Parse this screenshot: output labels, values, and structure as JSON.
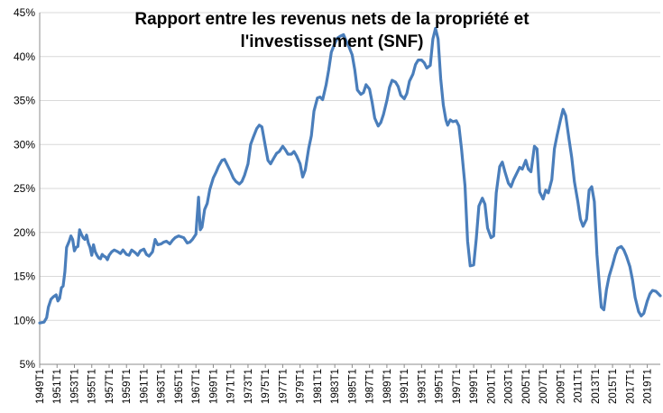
{
  "chart_data": {
    "type": "line",
    "title_lines": [
      "Rapport entre les revenus nets de la propriété et",
      "l'investissement (SNF)"
    ],
    "xlabel": "",
    "ylabel": "",
    "y_tick_labels": [
      "5%",
      "10%",
      "15%",
      "20%",
      "25%",
      "30%",
      "35%",
      "40%",
      "45%"
    ],
    "y_ticks": [
      5,
      10,
      15,
      20,
      25,
      30,
      35,
      40,
      45
    ],
    "ylim": [
      5,
      45
    ],
    "x_range": [
      1949,
      2020.5
    ],
    "x_tick_labels": [
      "1949T1",
      "1951T1",
      "1953T1",
      "1955T1",
      "1957T1",
      "1959T1",
      "1961T1",
      "1963T1",
      "1965T1",
      "1967T1",
      "1969T1",
      "1971T1",
      "1973T1",
      "1975T1",
      "1977T1",
      "1979T1",
      "1981T1",
      "1983T1",
      "1985T1",
      "1987T1",
      "1989T1",
      "1991T1",
      "1993T1",
      "1995T1",
      "1997T1",
      "1999T1",
      "2001T1",
      "2003T1",
      "2005T1",
      "2007T1",
      "2009T1",
      "2011T1",
      "2013T1",
      "2015T1",
      "2017T1",
      "2019T1"
    ],
    "x_ticks": [
      1949,
      1951,
      1953,
      1955,
      1957,
      1959,
      1961,
      1963,
      1965,
      1967,
      1969,
      1971,
      1973,
      1975,
      1977,
      1979,
      1981,
      1983,
      1985,
      1987,
      1989,
      1991,
      1993,
      1995,
      1997,
      1999,
      2001,
      2003,
      2005,
      2007,
      2009,
      2011,
      2013,
      2015,
      2017,
      2019
    ],
    "grid": "horizontal",
    "legend": "none",
    "line_color": "#4a7ebb",
    "series": [
      {
        "points": [
          [
            1949.0,
            9.7
          ],
          [
            1949.5,
            9.8
          ],
          [
            1949.8,
            10.3
          ],
          [
            1950.0,
            11.5
          ],
          [
            1950.3,
            12.4
          ],
          [
            1950.6,
            12.7
          ],
          [
            1950.9,
            12.9
          ],
          [
            1951.1,
            12.2
          ],
          [
            1951.3,
            12.5
          ],
          [
            1951.5,
            13.7
          ],
          [
            1951.7,
            13.9
          ],
          [
            1951.9,
            15.5
          ],
          [
            1952.1,
            18.3
          ],
          [
            1952.4,
            19.0
          ],
          [
            1952.6,
            19.6
          ],
          [
            1952.8,
            19.2
          ],
          [
            1953.0,
            17.9
          ],
          [
            1953.2,
            18.3
          ],
          [
            1953.4,
            18.4
          ],
          [
            1953.6,
            20.3
          ],
          [
            1953.8,
            19.8
          ],
          [
            1954.0,
            19.4
          ],
          [
            1954.2,
            19.2
          ],
          [
            1954.4,
            19.7
          ],
          [
            1954.6,
            18.8
          ],
          [
            1954.8,
            18.3
          ],
          [
            1955.0,
            17.4
          ],
          [
            1955.2,
            18.6
          ],
          [
            1955.4,
            17.8
          ],
          [
            1955.6,
            17.4
          ],
          [
            1955.8,
            17.1
          ],
          [
            1956.0,
            17.0
          ],
          [
            1956.2,
            17.5
          ],
          [
            1956.4,
            17.3
          ],
          [
            1956.6,
            17.2
          ],
          [
            1956.8,
            16.9
          ],
          [
            1957.0,
            17.4
          ],
          [
            1957.3,
            17.8
          ],
          [
            1957.6,
            18.0
          ],
          [
            1958.0,
            17.8
          ],
          [
            1958.3,
            17.6
          ],
          [
            1958.6,
            18.0
          ],
          [
            1959.0,
            17.5
          ],
          [
            1959.3,
            17.4
          ],
          [
            1959.6,
            18.0
          ],
          [
            1960.0,
            17.7
          ],
          [
            1960.3,
            17.4
          ],
          [
            1960.6,
            17.9
          ],
          [
            1961.0,
            18.1
          ],
          [
            1961.3,
            17.5
          ],
          [
            1961.6,
            17.3
          ],
          [
            1962.0,
            17.8
          ],
          [
            1962.3,
            19.2
          ],
          [
            1962.6,
            18.6
          ],
          [
            1963.0,
            18.7
          ],
          [
            1963.3,
            18.9
          ],
          [
            1963.6,
            19.0
          ],
          [
            1964.0,
            18.7
          ],
          [
            1964.3,
            19.1
          ],
          [
            1964.6,
            19.4
          ],
          [
            1965.0,
            19.6
          ],
          [
            1965.3,
            19.5
          ],
          [
            1965.6,
            19.4
          ],
          [
            1966.0,
            18.8
          ],
          [
            1966.3,
            18.9
          ],
          [
            1966.6,
            19.2
          ],
          [
            1967.0,
            19.8
          ],
          [
            1967.3,
            24.0
          ],
          [
            1967.5,
            20.3
          ],
          [
            1967.7,
            20.6
          ],
          [
            1968.0,
            22.6
          ],
          [
            1968.3,
            23.3
          ],
          [
            1968.6,
            24.9
          ],
          [
            1969.0,
            26.2
          ],
          [
            1969.3,
            26.8
          ],
          [
            1969.6,
            27.5
          ],
          [
            1970.0,
            28.2
          ],
          [
            1970.3,
            28.3
          ],
          [
            1970.6,
            27.7
          ],
          [
            1971.0,
            26.9
          ],
          [
            1971.3,
            26.2
          ],
          [
            1971.6,
            25.8
          ],
          [
            1972.0,
            25.5
          ],
          [
            1972.3,
            25.8
          ],
          [
            1972.6,
            26.5
          ],
          [
            1973.0,
            27.8
          ],
          [
            1973.3,
            30.0
          ],
          [
            1973.6,
            30.8
          ],
          [
            1974.0,
            31.8
          ],
          [
            1974.3,
            32.2
          ],
          [
            1974.6,
            32.0
          ],
          [
            1975.0,
            29.8
          ],
          [
            1975.3,
            28.2
          ],
          [
            1975.6,
            27.8
          ],
          [
            1976.0,
            28.5
          ],
          [
            1976.3,
            29.0
          ],
          [
            1976.6,
            29.2
          ],
          [
            1977.0,
            29.8
          ],
          [
            1977.3,
            29.4
          ],
          [
            1977.6,
            28.9
          ],
          [
            1978.0,
            28.9
          ],
          [
            1978.3,
            29.2
          ],
          [
            1978.6,
            28.7
          ],
          [
            1979.0,
            27.8
          ],
          [
            1979.3,
            26.3
          ],
          [
            1979.6,
            27.1
          ],
          [
            1980.0,
            29.6
          ],
          [
            1980.3,
            31.0
          ],
          [
            1980.6,
            33.8
          ],
          [
            1981.0,
            35.3
          ],
          [
            1981.3,
            35.4
          ],
          [
            1981.6,
            35.1
          ],
          [
            1982.0,
            36.8
          ],
          [
            1982.3,
            38.5
          ],
          [
            1982.6,
            40.5
          ],
          [
            1983.0,
            41.5
          ],
          [
            1983.3,
            42.1
          ],
          [
            1983.6,
            42.3
          ],
          [
            1984.0,
            42.5
          ],
          [
            1984.3,
            41.8
          ],
          [
            1984.6,
            41.2
          ],
          [
            1985.0,
            40.2
          ],
          [
            1985.3,
            38.5
          ],
          [
            1985.6,
            36.2
          ],
          [
            1986.0,
            35.7
          ],
          [
            1986.3,
            35.9
          ],
          [
            1986.6,
            36.8
          ],
          [
            1987.0,
            36.3
          ],
          [
            1987.3,
            34.8
          ],
          [
            1987.6,
            33.0
          ],
          [
            1988.0,
            32.1
          ],
          [
            1988.3,
            32.5
          ],
          [
            1988.6,
            33.4
          ],
          [
            1989.0,
            35.0
          ],
          [
            1989.3,
            36.5
          ],
          [
            1989.6,
            37.3
          ],
          [
            1990.0,
            37.1
          ],
          [
            1990.3,
            36.6
          ],
          [
            1990.6,
            35.6
          ],
          [
            1991.0,
            35.2
          ],
          [
            1991.3,
            35.8
          ],
          [
            1991.6,
            37.2
          ],
          [
            1992.0,
            38.0
          ],
          [
            1992.3,
            39.1
          ],
          [
            1992.6,
            39.6
          ],
          [
            1993.0,
            39.6
          ],
          [
            1993.3,
            39.3
          ],
          [
            1993.6,
            38.7
          ],
          [
            1994.0,
            39.0
          ],
          [
            1994.3,
            42.0
          ],
          [
            1994.6,
            43.2
          ],
          [
            1994.9,
            42.0
          ],
          [
            1995.2,
            37.5
          ],
          [
            1995.5,
            34.5
          ],
          [
            1995.8,
            32.8
          ],
          [
            1996.0,
            32.2
          ],
          [
            1996.3,
            32.8
          ],
          [
            1996.6,
            32.6
          ],
          [
            1997.0,
            32.7
          ],
          [
            1997.3,
            32.1
          ],
          [
            1997.6,
            29.5
          ],
          [
            1998.0,
            25.3
          ],
          [
            1998.3,
            19.0
          ],
          [
            1998.6,
            16.2
          ],
          [
            1999.0,
            16.3
          ],
          [
            1999.3,
            19.3
          ],
          [
            1999.6,
            23.0
          ],
          [
            2000.0,
            23.9
          ],
          [
            2000.3,
            23.2
          ],
          [
            2000.6,
            20.5
          ],
          [
            2001.0,
            19.4
          ],
          [
            2001.3,
            19.6
          ],
          [
            2001.6,
            24.5
          ],
          [
            2002.0,
            27.5
          ],
          [
            2002.3,
            28.0
          ],
          [
            2002.6,
            26.9
          ],
          [
            2003.0,
            25.6
          ],
          [
            2003.3,
            25.2
          ],
          [
            2003.6,
            26.0
          ],
          [
            2004.0,
            26.8
          ],
          [
            2004.3,
            27.4
          ],
          [
            2004.6,
            27.2
          ],
          [
            2005.0,
            28.2
          ],
          [
            2005.3,
            27.2
          ],
          [
            2005.6,
            26.9
          ],
          [
            2006.0,
            29.8
          ],
          [
            2006.3,
            29.5
          ],
          [
            2006.6,
            24.6
          ],
          [
            2007.0,
            23.8
          ],
          [
            2007.3,
            24.8
          ],
          [
            2007.6,
            24.5
          ],
          [
            2008.0,
            26.0
          ],
          [
            2008.3,
            29.5
          ],
          [
            2008.6,
            31.0
          ],
          [
            2009.0,
            32.8
          ],
          [
            2009.3,
            34.0
          ],
          [
            2009.6,
            33.3
          ],
          [
            2010.0,
            30.5
          ],
          [
            2010.3,
            28.5
          ],
          [
            2010.6,
            25.8
          ],
          [
            2011.0,
            23.5
          ],
          [
            2011.3,
            21.5
          ],
          [
            2011.6,
            20.7
          ],
          [
            2012.0,
            21.5
          ],
          [
            2012.3,
            24.8
          ],
          [
            2012.6,
            25.2
          ],
          [
            2012.9,
            23.5
          ],
          [
            2013.2,
            17.5
          ],
          [
            2013.5,
            13.8
          ],
          [
            2013.7,
            11.5
          ],
          [
            2014.0,
            11.2
          ],
          [
            2014.3,
            13.5
          ],
          [
            2014.6,
            15.0
          ],
          [
            2015.0,
            16.3
          ],
          [
            2015.3,
            17.4
          ],
          [
            2015.6,
            18.2
          ],
          [
            2016.0,
            18.4
          ],
          [
            2016.3,
            18.0
          ],
          [
            2016.6,
            17.3
          ],
          [
            2017.0,
            16.1
          ],
          [
            2017.3,
            14.6
          ],
          [
            2017.6,
            12.6
          ],
          [
            2018.0,
            11.0
          ],
          [
            2018.3,
            10.5
          ],
          [
            2018.6,
            10.8
          ],
          [
            2019.0,
            12.2
          ],
          [
            2019.3,
            13.0
          ],
          [
            2019.6,
            13.4
          ],
          [
            2020.0,
            13.3
          ],
          [
            2020.3,
            13.0
          ],
          [
            2020.5,
            12.8
          ]
        ]
      }
    ]
  }
}
